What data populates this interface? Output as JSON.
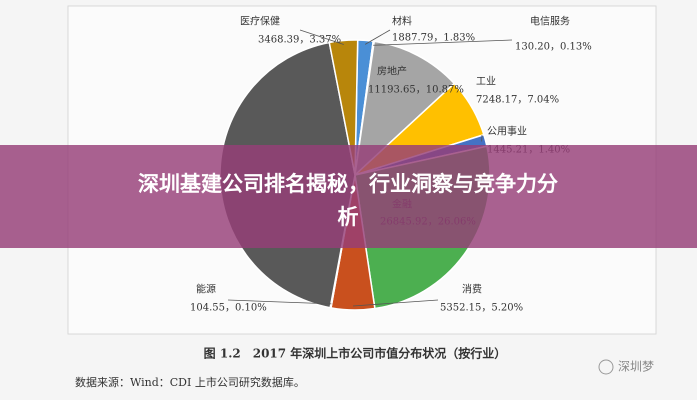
{
  "banner": [
    "深圳基建公司排名揭秘，行业洞察与竞争力分",
    "析"
  ],
  "chart_data": {
    "type": "pie",
    "categories": [
      "材料",
      "电信服务",
      "房地产",
      "工业",
      "公用事业",
      "金融",
      "消费",
      "能源",
      null,
      "医疗保健"
    ],
    "values": [
      1887.79,
      130.2,
      11193.65,
      7248.17,
      1445.21,
      26845.92,
      5352.15,
      104.55,
      45327,
      3468.39
    ],
    "value_labels": [
      "1887.79，1.83%",
      "130.20，0.13%",
      "11193.65，10.87%",
      "7248.17，7.04%",
      "1445.21，1.40%",
      "26845.92，26.06%",
      "5352.15，5.20%",
      "104.55，0.10%",
      null,
      "3468.39，3.37%"
    ],
    "colors": [
      "#4a8fd6",
      "#1f3864",
      "#a5a5a5",
      "#ffc000",
      "#4472c4",
      "#4caf50",
      "#c9501e",
      "#264478",
      "#595959",
      "#b8860b"
    ]
  },
  "caption": "图 1.2　2017 年深圳上市公司市值分布状况（按行业）",
  "source": "数据来源：Wind：CDI 上市公司研究数据库。",
  "watermark": "深圳梦"
}
